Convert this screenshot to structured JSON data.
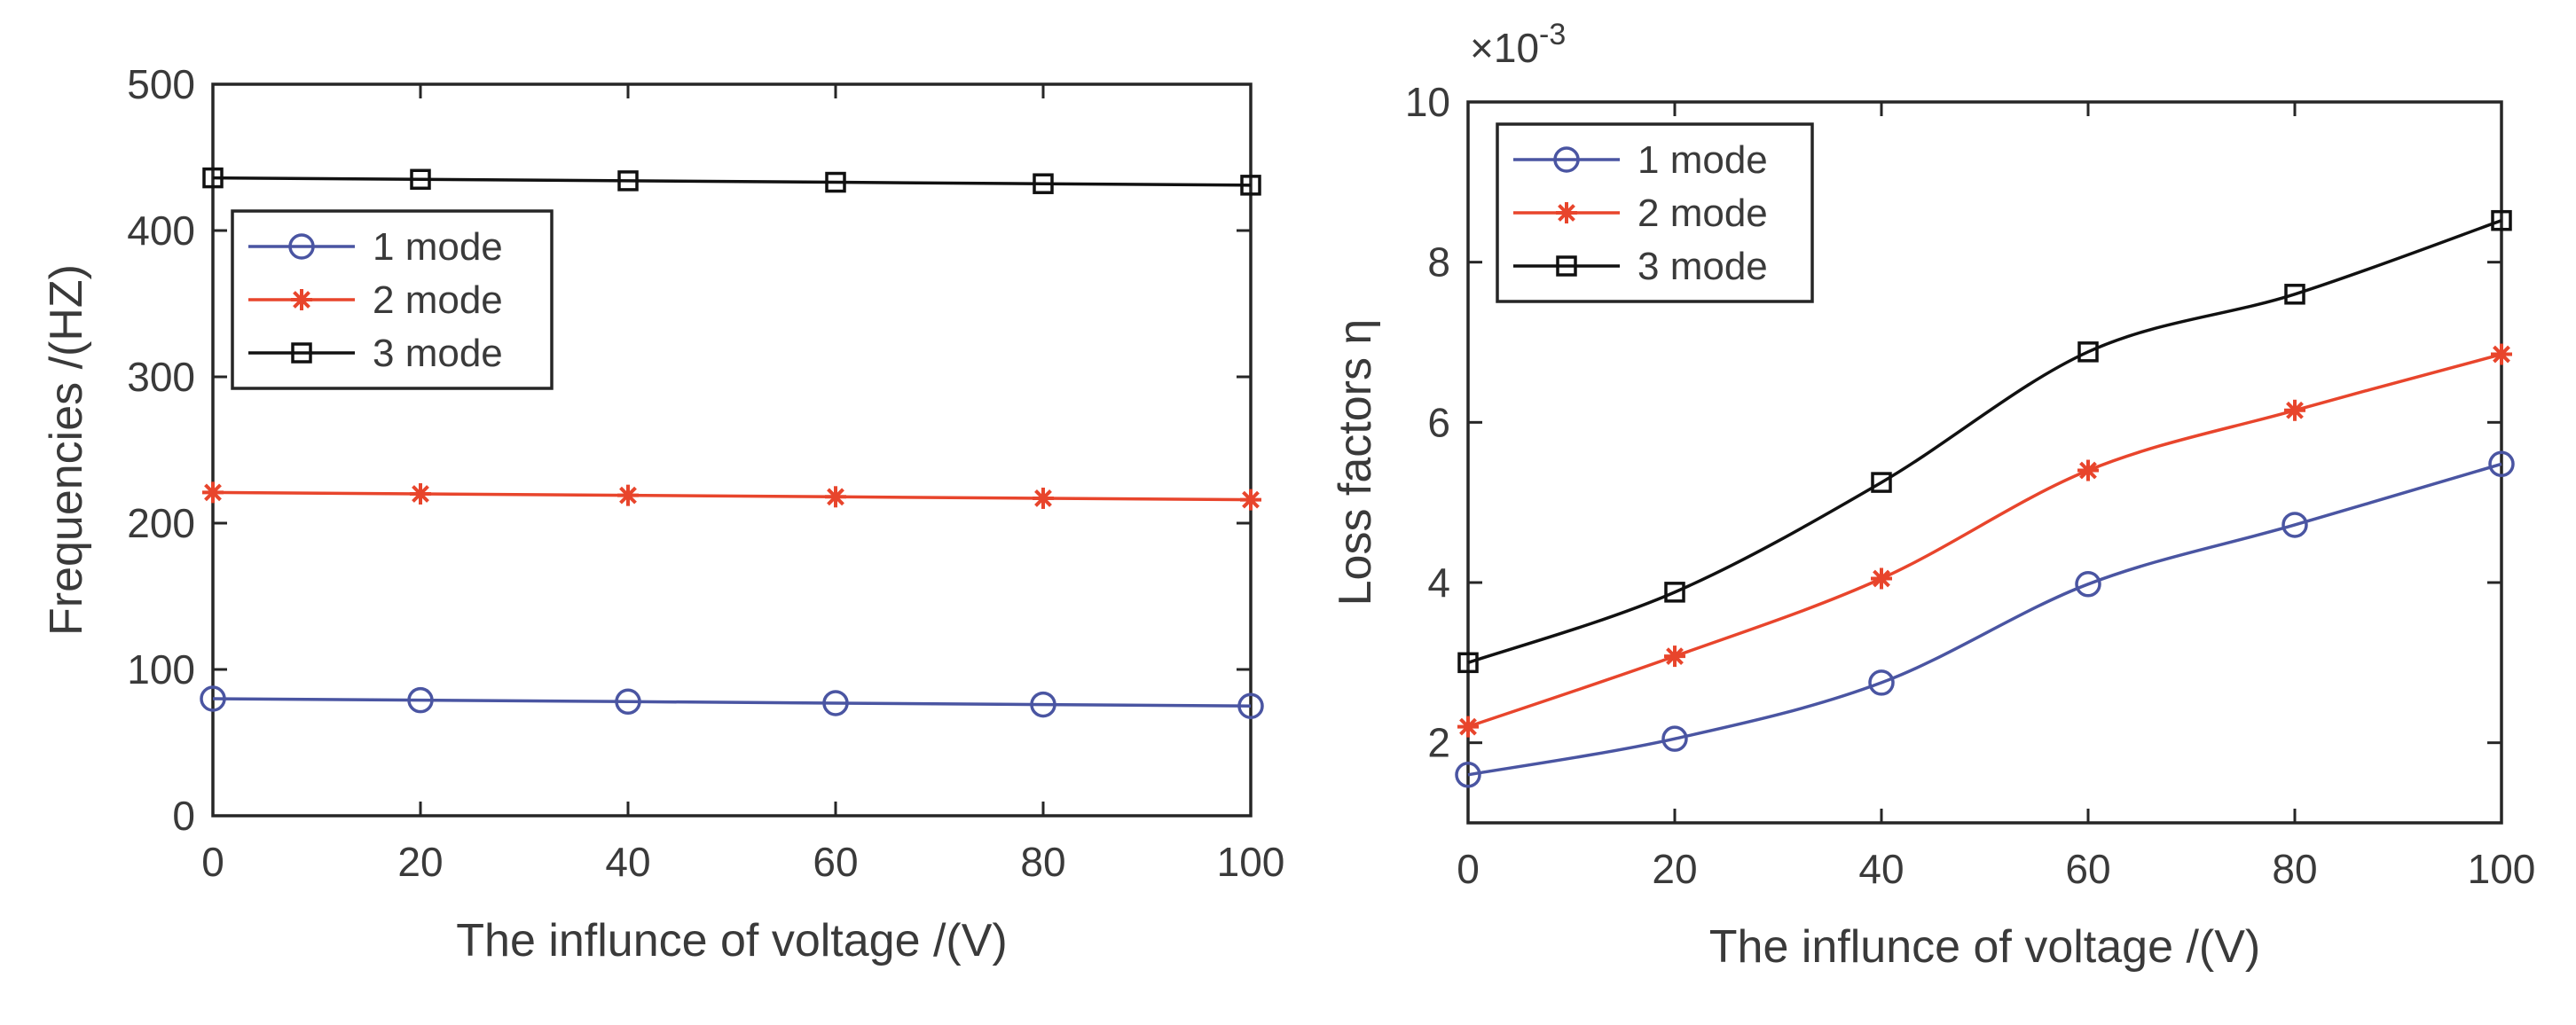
{
  "chart_data": [
    {
      "type": "line",
      "xlabel": "The influnce of voltage /(V)",
      "ylabel": "Frequencies /(HZ)",
      "x": [
        0,
        20,
        40,
        60,
        80,
        100
      ],
      "xlim": [
        0,
        100
      ],
      "ylim": [
        0,
        500
      ],
      "xticks": [
        "0",
        "20",
        "40",
        "60",
        "80",
        "100"
      ],
      "yticks": [
        "0",
        "100",
        "200",
        "300",
        "400",
        "500"
      ],
      "grid": false,
      "legend_position": "upper-left",
      "series": [
        {
          "name": "1 mode",
          "color": "#4a55a2",
          "marker": "circle",
          "values": [
            80,
            79,
            78,
            77,
            76,
            75
          ]
        },
        {
          "name": "2 mode",
          "color": "#e8452c",
          "marker": "asterisk",
          "values": [
            221,
            220,
            219,
            218,
            217,
            216
          ]
        },
        {
          "name": "3 mode",
          "color": "#111111",
          "marker": "square",
          "values": [
            436,
            435,
            434,
            433,
            432,
            431
          ]
        }
      ]
    },
    {
      "type": "line",
      "xlabel": "The influnce of voltage /(V)",
      "ylabel": "Loss factors η",
      "exponent_label": "×10",
      "exponent_power": "-3",
      "x": [
        0,
        20,
        40,
        60,
        80,
        100
      ],
      "xlim": [
        0,
        100
      ],
      "ylim": [
        1,
        10
      ],
      "xticks": [
        "0",
        "20",
        "40",
        "60",
        "80",
        "100"
      ],
      "yticks": [
        "2",
        "4",
        "6",
        "8",
        "10"
      ],
      "grid": false,
      "legend_position": "upper-left",
      "series": [
        {
          "name": "1 mode",
          "color": "#4a55a2",
          "marker": "circle",
          "values": [
            1.6,
            2.05,
            2.75,
            3.98,
            4.72,
            5.48
          ]
        },
        {
          "name": "2 mode",
          "color": "#e8452c",
          "marker": "asterisk",
          "values": [
            2.2,
            3.08,
            4.05,
            5.4,
            6.15,
            6.85
          ]
        },
        {
          "name": "3 mode",
          "color": "#111111",
          "marker": "square",
          "values": [
            3.0,
            3.88,
            5.25,
            6.88,
            7.6,
            8.52
          ]
        }
      ]
    }
  ]
}
